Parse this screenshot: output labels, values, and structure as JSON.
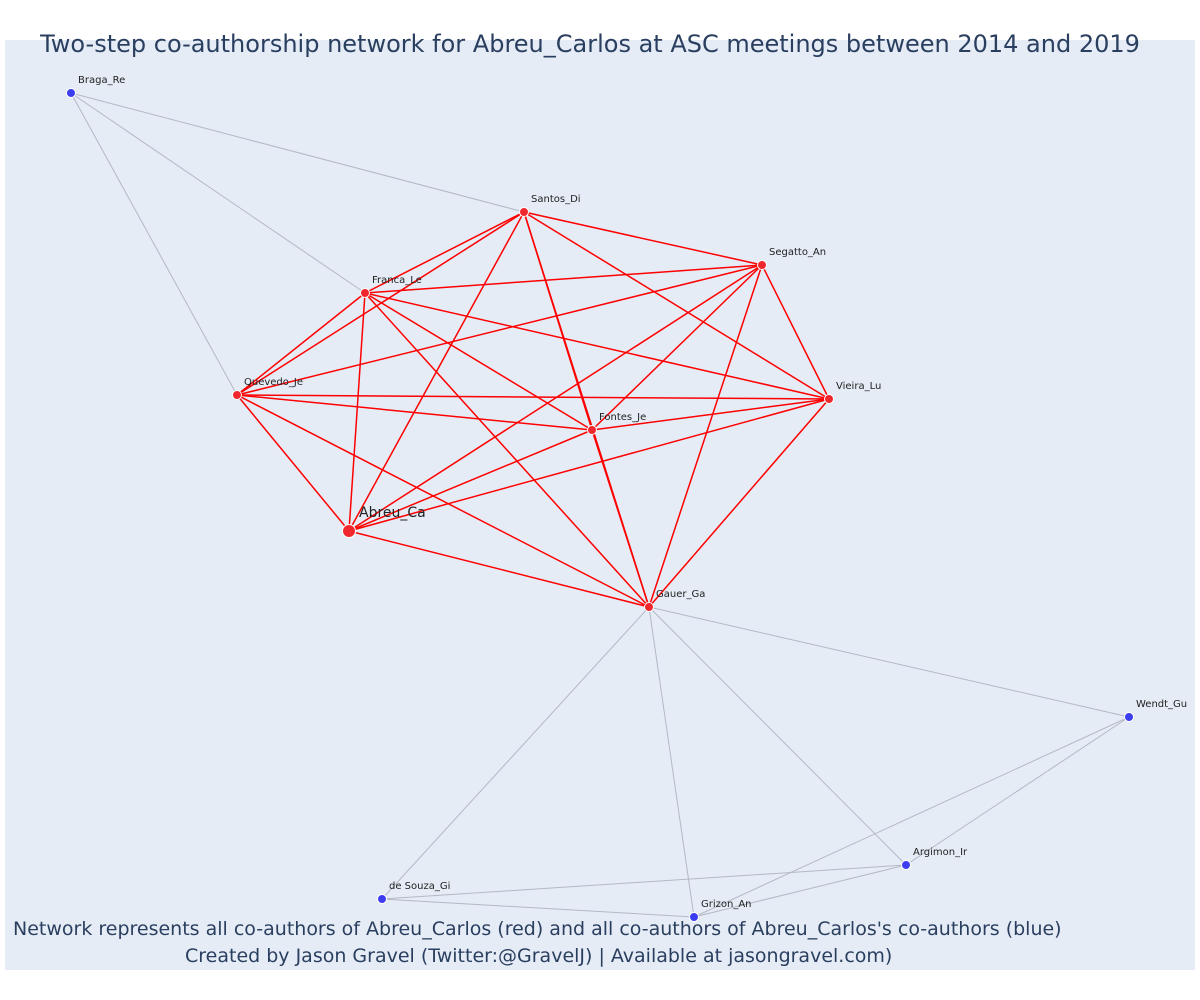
{
  "title": "Two-step co-authorship network for Abreu_Carlos at ASC meetings between 2014 and 2019",
  "footer": {
    "line1": "Network represents all co-authors of Abreu_Carlos (red) and all co-authors of Abreu_Carlos's co-authors (blue)",
    "line2": "Created by Jason Gravel (Twitter:@GravelJ) | Available at jasongravel.com)"
  },
  "colors": {
    "background": "#e5ecf6",
    "coauthor_node": "#f0282d",
    "second_step_node": "#3c3cf0",
    "coauthor_edge": "#ff0000",
    "second_step_edge": "#b4b8c6",
    "text": "#2a3f5f"
  },
  "nodes": [
    {
      "id": "Abreu_Ca",
      "label": "Abreu_Ca",
      "group": "focal"
    },
    {
      "id": "Santos_Di",
      "label": "Santos_Di",
      "group": "coauthor"
    },
    {
      "id": "Segatto_An",
      "label": "Segatto_An",
      "group": "coauthor"
    },
    {
      "id": "Franca_Le",
      "label": "Franca_Le",
      "group": "coauthor"
    },
    {
      "id": "Quevedo_Je",
      "label": "Quevedo_Je",
      "group": "coauthor"
    },
    {
      "id": "Vieira_Lu",
      "label": "Vieira_Lu",
      "group": "coauthor"
    },
    {
      "id": "Fontes_Je",
      "label": "Fontes_Je",
      "group": "coauthor"
    },
    {
      "id": "Gauer_Ga",
      "label": "Gauer_Ga",
      "group": "coauthor"
    },
    {
      "id": "Braga_Re",
      "label": "Braga_Re",
      "group": "second"
    },
    {
      "id": "Wendt_Gu",
      "label": "Wendt_Gu",
      "group": "second"
    },
    {
      "id": "Argimon_Ir",
      "label": "Argimon_Ir",
      "group": "second"
    },
    {
      "id": "de_Souza_Gi",
      "label": "de Souza_Gi",
      "group": "second"
    },
    {
      "id": "Grizon_An",
      "label": "Grizon_An",
      "group": "second"
    }
  ],
  "edges": [
    [
      "Abreu_Ca",
      "Santos_Di",
      "coauthor"
    ],
    [
      "Abreu_Ca",
      "Segatto_An",
      "coauthor"
    ],
    [
      "Abreu_Ca",
      "Franca_Le",
      "coauthor"
    ],
    [
      "Abreu_Ca",
      "Quevedo_Je",
      "coauthor"
    ],
    [
      "Abreu_Ca",
      "Vieira_Lu",
      "coauthor"
    ],
    [
      "Abreu_Ca",
      "Fontes_Je",
      "coauthor"
    ],
    [
      "Abreu_Ca",
      "Gauer_Ga",
      "coauthor"
    ],
    [
      "Santos_Di",
      "Segatto_An",
      "coauthor"
    ],
    [
      "Santos_Di",
      "Franca_Le",
      "coauthor"
    ],
    [
      "Santos_Di",
      "Quevedo_Je",
      "coauthor"
    ],
    [
      "Santos_Di",
      "Vieira_Lu",
      "coauthor"
    ],
    [
      "Santos_Di",
      "Fontes_Je",
      "coauthor"
    ],
    [
      "Santos_Di",
      "Gauer_Ga",
      "coauthor"
    ],
    [
      "Segatto_An",
      "Franca_Le",
      "coauthor"
    ],
    [
      "Segatto_An",
      "Quevedo_Je",
      "coauthor"
    ],
    [
      "Segatto_An",
      "Vieira_Lu",
      "coauthor"
    ],
    [
      "Segatto_An",
      "Fontes_Je",
      "coauthor"
    ],
    [
      "Segatto_An",
      "Gauer_Ga",
      "coauthor"
    ],
    [
      "Franca_Le",
      "Quevedo_Je",
      "coauthor"
    ],
    [
      "Franca_Le",
      "Vieira_Lu",
      "coauthor"
    ],
    [
      "Franca_Le",
      "Fontes_Je",
      "coauthor"
    ],
    [
      "Franca_Le",
      "Gauer_Ga",
      "coauthor"
    ],
    [
      "Quevedo_Je",
      "Vieira_Lu",
      "coauthor"
    ],
    [
      "Quevedo_Je",
      "Fontes_Je",
      "coauthor"
    ],
    [
      "Quevedo_Je",
      "Gauer_Ga",
      "coauthor"
    ],
    [
      "Vieira_Lu",
      "Fontes_Je",
      "coauthor"
    ],
    [
      "Vieira_Lu",
      "Gauer_Ga",
      "coauthor"
    ],
    [
      "Fontes_Je",
      "Gauer_Ga",
      "coauthor"
    ],
    [
      "Braga_Re",
      "Santos_Di",
      "second"
    ],
    [
      "Braga_Re",
      "Franca_Le",
      "second"
    ],
    [
      "Braga_Re",
      "Quevedo_Je",
      "second"
    ],
    [
      "Gauer_Ga",
      "Wendt_Gu",
      "second"
    ],
    [
      "Gauer_Ga",
      "Argimon_Ir",
      "second"
    ],
    [
      "Gauer_Ga",
      "de_Souza_Gi",
      "second"
    ],
    [
      "Gauer_Ga",
      "Grizon_An",
      "second"
    ],
    [
      "Wendt_Gu",
      "Argimon_Ir",
      "second"
    ],
    [
      "Wendt_Gu",
      "Grizon_An",
      "second"
    ],
    [
      "Argimon_Ir",
      "de_Souza_Gi",
      "second"
    ],
    [
      "Argimon_Ir",
      "Grizon_An",
      "second"
    ],
    [
      "de_Souza_Gi",
      "Grizon_An",
      "second"
    ]
  ]
}
